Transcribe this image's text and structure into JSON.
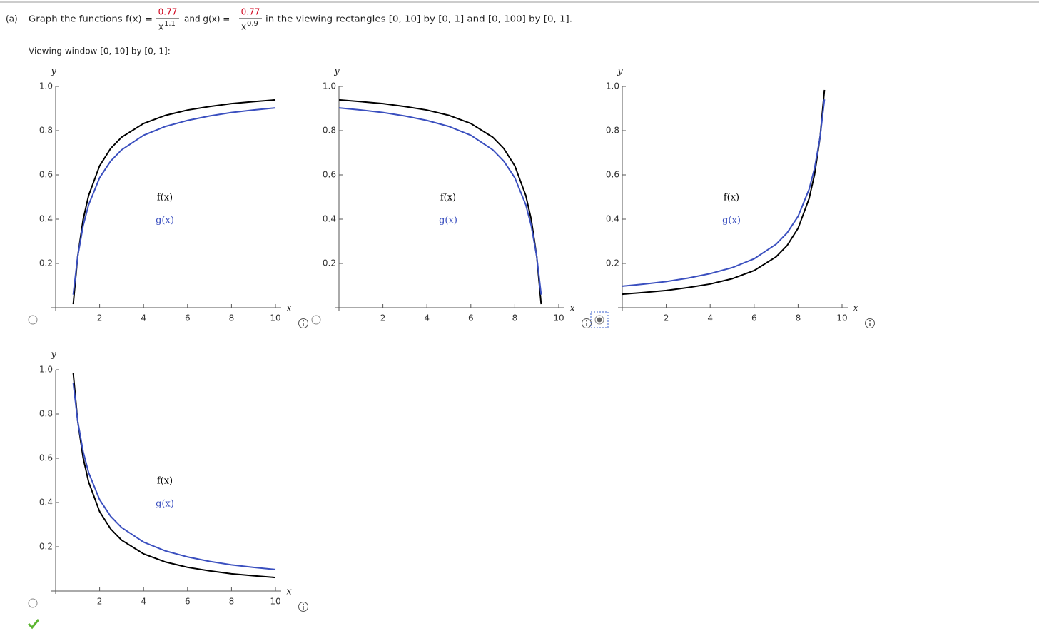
{
  "question": {
    "label": "(a)",
    "prefix": "Graph the functions f(x) =",
    "f_numerator": "0.77",
    "f_base": "x",
    "f_exponent": "1.1",
    "middle": "and g(x) =",
    "g_numerator": "0.77",
    "g_base": "x",
    "g_exponent": "0.9",
    "suffix": "in the viewing rectangles [0, 10] by [0, 1] and [0, 100] by [0, 1]."
  },
  "window_label": "Viewing window [0, 10] by [0, 1]:",
  "selected_option": 2,
  "correct_option": 3,
  "chart_data": [
    {
      "type": "line",
      "xlabel": "x",
      "ylabel": "y",
      "legend": "center",
      "x": [
        0.8,
        1,
        1.25,
        1.5,
        2,
        2.5,
        3,
        4,
        5,
        6,
        7,
        8,
        9,
        10
      ],
      "series": [
        {
          "name": "f(x)",
          "color": "#000000",
          "values": [
            0.016,
            0.23,
            0.398,
            0.507,
            0.641,
            0.719,
            0.77,
            0.832,
            0.869,
            0.893,
            0.909,
            0.922,
            0.931,
            0.939
          ]
        },
        {
          "name": "g(x)",
          "color": "#3a4fbf",
          "values": [
            0.059,
            0.23,
            0.37,
            0.465,
            0.587,
            0.662,
            0.713,
            0.779,
            0.819,
            0.846,
            0.866,
            0.882,
            0.893,
            0.903
          ]
        }
      ],
      "xlim": [
        0,
        10
      ],
      "ylim": [
        0,
        1
      ],
      "xticks": [
        2,
        4,
        6,
        8,
        10
      ],
      "yticks": [
        0.2,
        0.4,
        0.6,
        0.8,
        {
          "value": 1,
          "label": "1.0"
        }
      ]
    },
    {
      "type": "line",
      "xlabel": "x",
      "ylabel": "y",
      "legend": "center",
      "x": [
        0,
        1,
        2,
        3,
        4,
        5,
        6,
        7,
        7.5,
        8,
        8.5,
        8.75,
        9,
        9.2
      ],
      "series": [
        {
          "name": "f(x)",
          "color": "#000000",
          "values": [
            0.939,
            0.931,
            0.922,
            0.909,
            0.893,
            0.869,
            0.832,
            0.77,
            0.719,
            0.641,
            0.507,
            0.398,
            0.23,
            0.016
          ]
        },
        {
          "name": "g(x)",
          "color": "#3a4fbf",
          "values": [
            0.903,
            0.893,
            0.882,
            0.866,
            0.846,
            0.819,
            0.779,
            0.713,
            0.662,
            0.587,
            0.465,
            0.37,
            0.23,
            0.059
          ]
        }
      ],
      "xlim": [
        0,
        10
      ],
      "ylim": [
        0,
        1
      ],
      "xticks": [
        2,
        4,
        6,
        8,
        10
      ],
      "yticks": [
        0.2,
        0.4,
        0.6,
        0.8,
        {
          "value": 1,
          "label": "1.0"
        }
      ]
    },
    {
      "type": "line",
      "xlabel": "x",
      "ylabel": "y",
      "legend": "center",
      "x": [
        0,
        1,
        2,
        3,
        4,
        5,
        6,
        7,
        7.5,
        8,
        8.5,
        8.75,
        9,
        9.2
      ],
      "series": [
        {
          "name": "f(x)",
          "color": "#000000",
          "values": [
            0.061,
            0.069,
            0.078,
            0.091,
            0.107,
            0.131,
            0.168,
            0.23,
            0.281,
            0.359,
            0.493,
            0.602,
            0.77,
            0.984
          ]
        },
        {
          "name": "g(x)",
          "color": "#3a4fbf",
          "values": [
            0.097,
            0.107,
            0.118,
            0.134,
            0.154,
            0.181,
            0.221,
            0.287,
            0.338,
            0.413,
            0.535,
            0.63,
            0.77,
            0.941
          ]
        }
      ],
      "xlim": [
        0,
        10
      ],
      "ylim": [
        0,
        1
      ],
      "xticks": [
        2,
        4,
        6,
        8,
        10
      ],
      "yticks": [
        0.2,
        0.4,
        0.6,
        0.8,
        {
          "value": 1,
          "label": "1.0"
        }
      ]
    },
    {
      "type": "line",
      "xlabel": "x",
      "ylabel": "y",
      "legend": "center",
      "x": [
        0.8,
        1,
        1.25,
        1.5,
        2,
        2.5,
        3,
        4,
        5,
        6,
        7,
        8,
        9,
        10
      ],
      "series": [
        {
          "name": "f(x)",
          "color": "#000000",
          "values": [
            0.984,
            0.77,
            0.602,
            0.493,
            0.359,
            0.281,
            0.23,
            0.168,
            0.131,
            0.107,
            0.091,
            0.078,
            0.069,
            0.061
          ]
        },
        {
          "name": "g(x)",
          "color": "#3a4fbf",
          "values": [
            0.941,
            0.77,
            0.63,
            0.535,
            0.413,
            0.338,
            0.287,
            0.221,
            0.181,
            0.154,
            0.134,
            0.118,
            0.107,
            0.097
          ]
        }
      ],
      "xlim": [
        0,
        10
      ],
      "ylim": [
        0,
        1
      ],
      "xticks": [
        2,
        4,
        6,
        8,
        10
      ],
      "yticks": [
        0.2,
        0.4,
        0.6,
        0.8,
        {
          "value": 1,
          "label": "1.0"
        }
      ]
    }
  ]
}
